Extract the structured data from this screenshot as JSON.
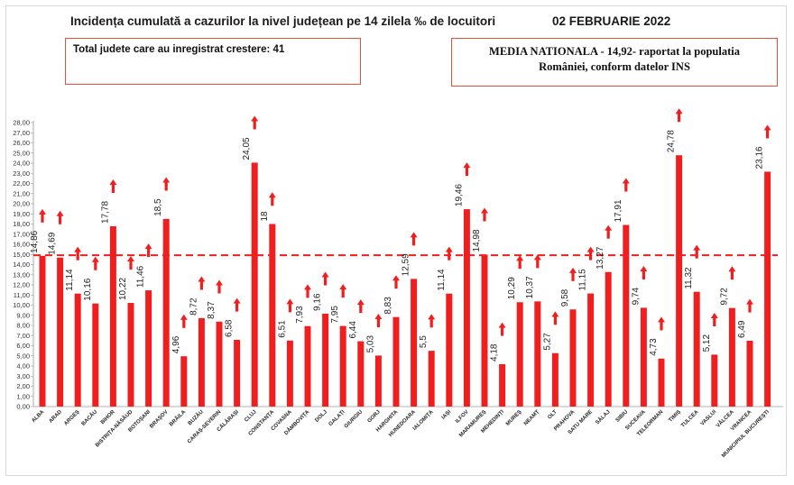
{
  "header": {
    "title": "Incidența cumulată a cazurilor la nivel județean pe 14 zilela ‰ de locuitori",
    "date": "02 FEBRUARIE 2022"
  },
  "info_box": {
    "total_text": "Total judete care au inregistrat crestere: 41"
  },
  "media_box": {
    "line1": "MEDIA NATIONALA - 14,92- raportat la populatia",
    "line2": "României, conform datelor INS"
  },
  "colors": {
    "bar": "#f01e1e",
    "reference_line": "#f01e1e",
    "arrow": "#f01e1e",
    "box_border": "#e0503c"
  },
  "chart_data": {
    "type": "bar",
    "title": "Incidența cumulată a cazurilor la nivel județean pe 14 zilela ‰ de locuitori",
    "xlabel": "",
    "ylabel": "",
    "ylim": [
      0,
      28
    ],
    "ytick_step": 1,
    "ytick_labels": [
      "0,00",
      "1,00",
      "2,00",
      "3,00",
      "4,00",
      "5,00",
      "6,00",
      "7,00",
      "8,00",
      "9,00",
      "10,00",
      "11,00",
      "12,00",
      "13,00",
      "14,00",
      "15,00",
      "16,00",
      "17,00",
      "18,00",
      "19,00",
      "20,00",
      "21,00",
      "22,00",
      "23,00",
      "24,00",
      "25,00",
      "26,00",
      "27,00",
      "28,00"
    ],
    "grid": false,
    "reference_line": {
      "value": 14.92,
      "style": "dashed"
    },
    "trend": "up arrow above every bar",
    "categories": [
      "ALBA",
      "ARAD",
      "ARGEȘ",
      "BACĂU",
      "BIHOR",
      "BISTRIȚA-NĂSĂUD",
      "BOTOȘANI",
      "BRAȘOV",
      "BRĂILA",
      "BUZĂU",
      "CARAȘ-SEVERIN",
      "CĂLĂRAȘI",
      "CLUJ",
      "CONSTANȚA",
      "COVASNA",
      "DÂMBOVIȚA",
      "DOLJ",
      "GALAȚI",
      "GIURGIU",
      "GORJ",
      "HARGHITA",
      "HUNEDOARA",
      "IALOMIȚA",
      "IAȘI",
      "ILFOV",
      "MARAMUREȘ",
      "MEHEDINȚI",
      "MUREȘ",
      "NEAMȚ",
      "OLT",
      "PRAHOVA",
      "SATU MARE",
      "SĂLAJ",
      "SIBIU",
      "SUCEAVA",
      "TELEORMAN",
      "TIMIȘ",
      "TULCEA",
      "VASLUI",
      "VÂLCEA",
      "VRANCEA",
      "MUNICIPIUL BUCUREȘTI"
    ],
    "values": [
      14.86,
      14.69,
      11.14,
      10.16,
      17.78,
      10.22,
      11.46,
      18.5,
      4.96,
      8.72,
      8.37,
      6.58,
      24.05,
      18,
      6.51,
      7.93,
      9.16,
      7.95,
      6.44,
      5.03,
      8.83,
      12.59,
      5.5,
      11.14,
      19.46,
      14.98,
      4.18,
      10.29,
      10.37,
      5.27,
      9.58,
      11.15,
      13.27,
      17.91,
      9.74,
      4.73,
      24.78,
      11.32,
      5.12,
      9.72,
      6.49,
      23.16
    ],
    "value_labels": [
      "14,86",
      "14,69",
      "11,14",
      "10,16",
      "17,78",
      "10,22",
      "11,46",
      "18,5",
      "4,96",
      "8,72",
      "8,37",
      "6,58",
      "24,05",
      "18",
      "6,51",
      "7,93",
      "9,16",
      "7,95",
      "6,44",
      "5,03",
      "8,83",
      "12,59",
      "5,5",
      "11,14",
      "19,46",
      "14,98",
      "4,18",
      "10,29",
      "10,37",
      "5,27",
      "9,58",
      "11,15",
      "13,27",
      "17,91",
      "9,74",
      "4,73",
      "24,78",
      "11,32",
      "5,12",
      "9,72",
      "6,49",
      "23,16"
    ]
  }
}
